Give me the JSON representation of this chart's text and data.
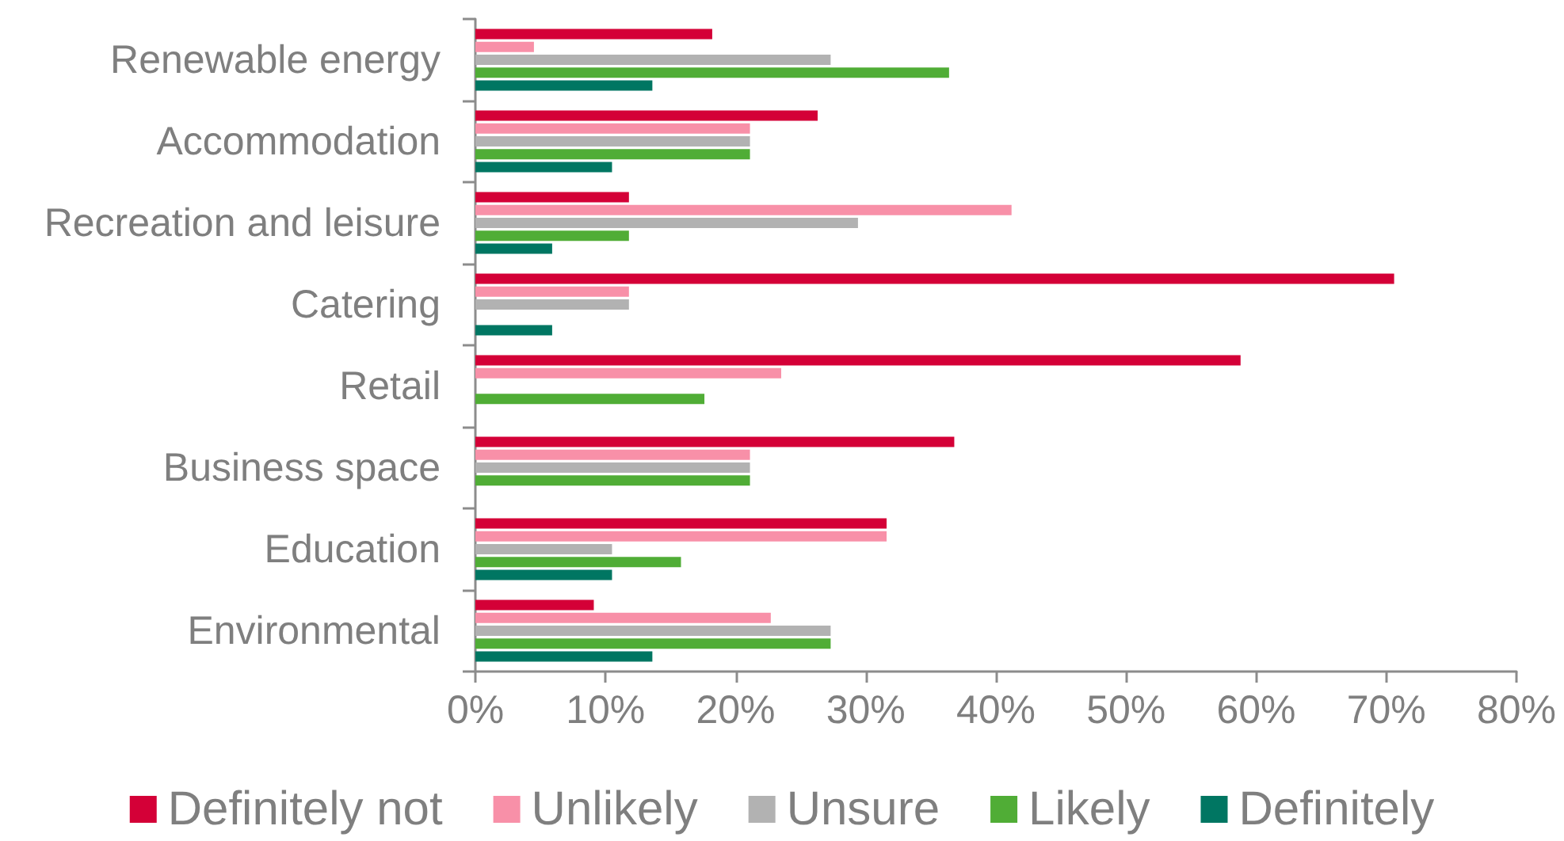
{
  "chart_data": {
    "type": "bar",
    "orientation": "horizontal",
    "categories": [
      "Renewable energy",
      "Accommodation",
      "Recreation and leisure",
      "Catering",
      "Retail",
      "Business space",
      "Education",
      "Environmental"
    ],
    "series": [
      {
        "name": "Definitely not",
        "color": "#d40037",
        "values": [
          18.2,
          26.3,
          11.8,
          70.6,
          58.8,
          36.8,
          31.6,
          9.1
        ]
      },
      {
        "name": "Unlikely",
        "color": "#f890a8",
        "values": [
          4.5,
          21.1,
          41.2,
          11.8,
          23.5,
          21.1,
          31.6,
          22.7
        ]
      },
      {
        "name": "Unsure",
        "color": "#b2b2b2",
        "values": [
          27.3,
          21.1,
          29.4,
          11.8,
          0,
          21.1,
          10.5,
          27.3
        ]
      },
      {
        "name": "Likely",
        "color": "#50ad36",
        "values": [
          36.4,
          21.1,
          11.8,
          0,
          17.6,
          21.1,
          15.8,
          27.3
        ]
      },
      {
        "name": "Definitely",
        "color": "#007662",
        "values": [
          13.6,
          10.5,
          5.9,
          5.9,
          0,
          0,
          10.5,
          13.6
        ]
      }
    ],
    "xlim": [
      0,
      80
    ],
    "xticks": [
      {
        "value": 0,
        "label": "0%"
      },
      {
        "value": 10,
        "label": "10%"
      },
      {
        "value": 20,
        "label": "20%"
      },
      {
        "value": 30,
        "label": "30%"
      },
      {
        "value": 40,
        "label": "40%"
      },
      {
        "value": 50,
        "label": "50%"
      },
      {
        "value": 60,
        "label": "60%"
      },
      {
        "value": 70,
        "label": "70%"
      },
      {
        "value": 80,
        "label": "80%"
      }
    ],
    "grid": false,
    "legend": "bottom"
  }
}
